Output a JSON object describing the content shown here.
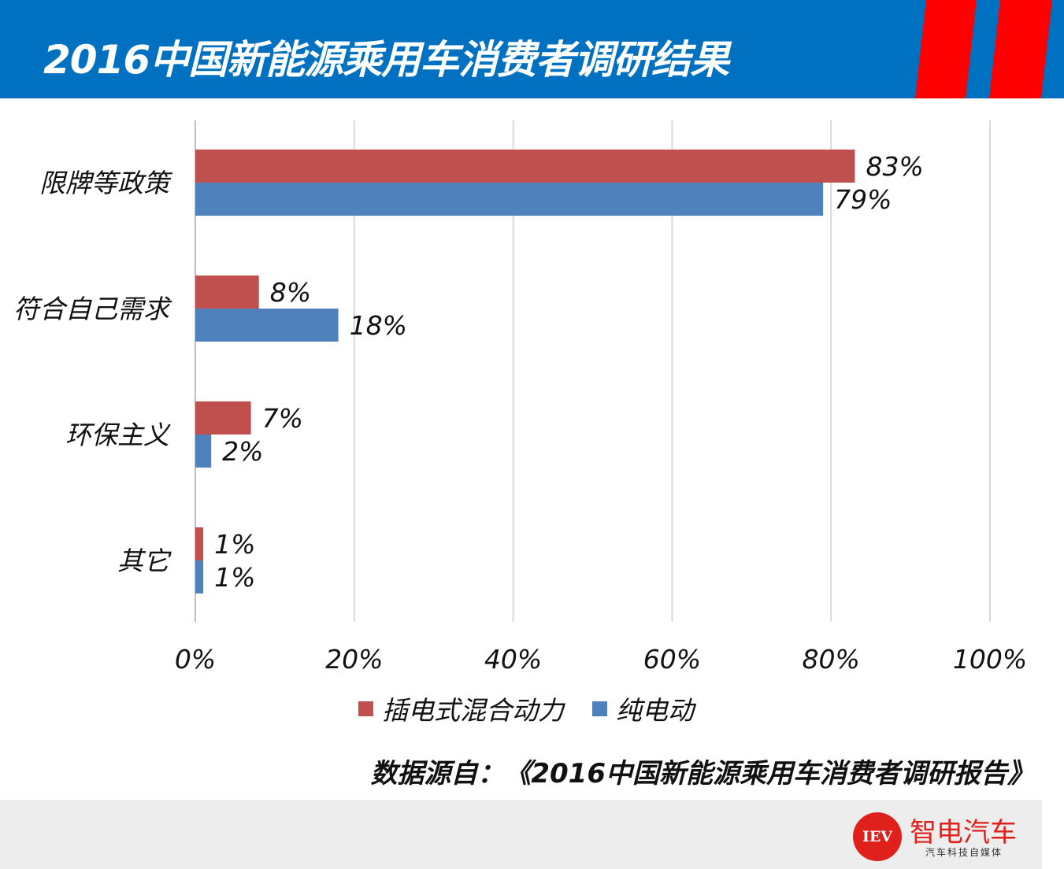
{
  "header": {
    "title": "2016中国新能源乘用车消费者调研结果"
  },
  "colors": {
    "header_blue": "#0070c0",
    "stripe_red": "#ff0000",
    "series_phev": "#c0504d",
    "series_bev": "#4f81bd",
    "grid": "#d9d9d9"
  },
  "chart_data": {
    "type": "bar",
    "orientation": "horizontal",
    "categories": [
      "限牌等政策",
      "符合自己需求",
      "环保主义",
      "其它"
    ],
    "series": [
      {
        "name": "插电式混合动力",
        "values": [
          83,
          8,
          7,
          1
        ],
        "labels": [
          "83%",
          "8%",
          "7%",
          "1%"
        ]
      },
      {
        "name": "纯电动",
        "values": [
          79,
          18,
          2,
          1
        ],
        "labels": [
          "79%",
          "18%",
          "2%",
          "1%"
        ]
      }
    ],
    "xlim": [
      0,
      100
    ],
    "xticks": [
      "0%",
      "20%",
      "40%",
      "60%",
      "80%",
      "100%"
    ],
    "grid": true,
    "legend": "bottom"
  },
  "source": "数据源自：《2016中国新能源乘用车消费者调研报告》",
  "footer": {
    "logo_abbr": "IEV",
    "logo_name": "智电汽车",
    "logo_sub": "汽车科技自媒体"
  }
}
